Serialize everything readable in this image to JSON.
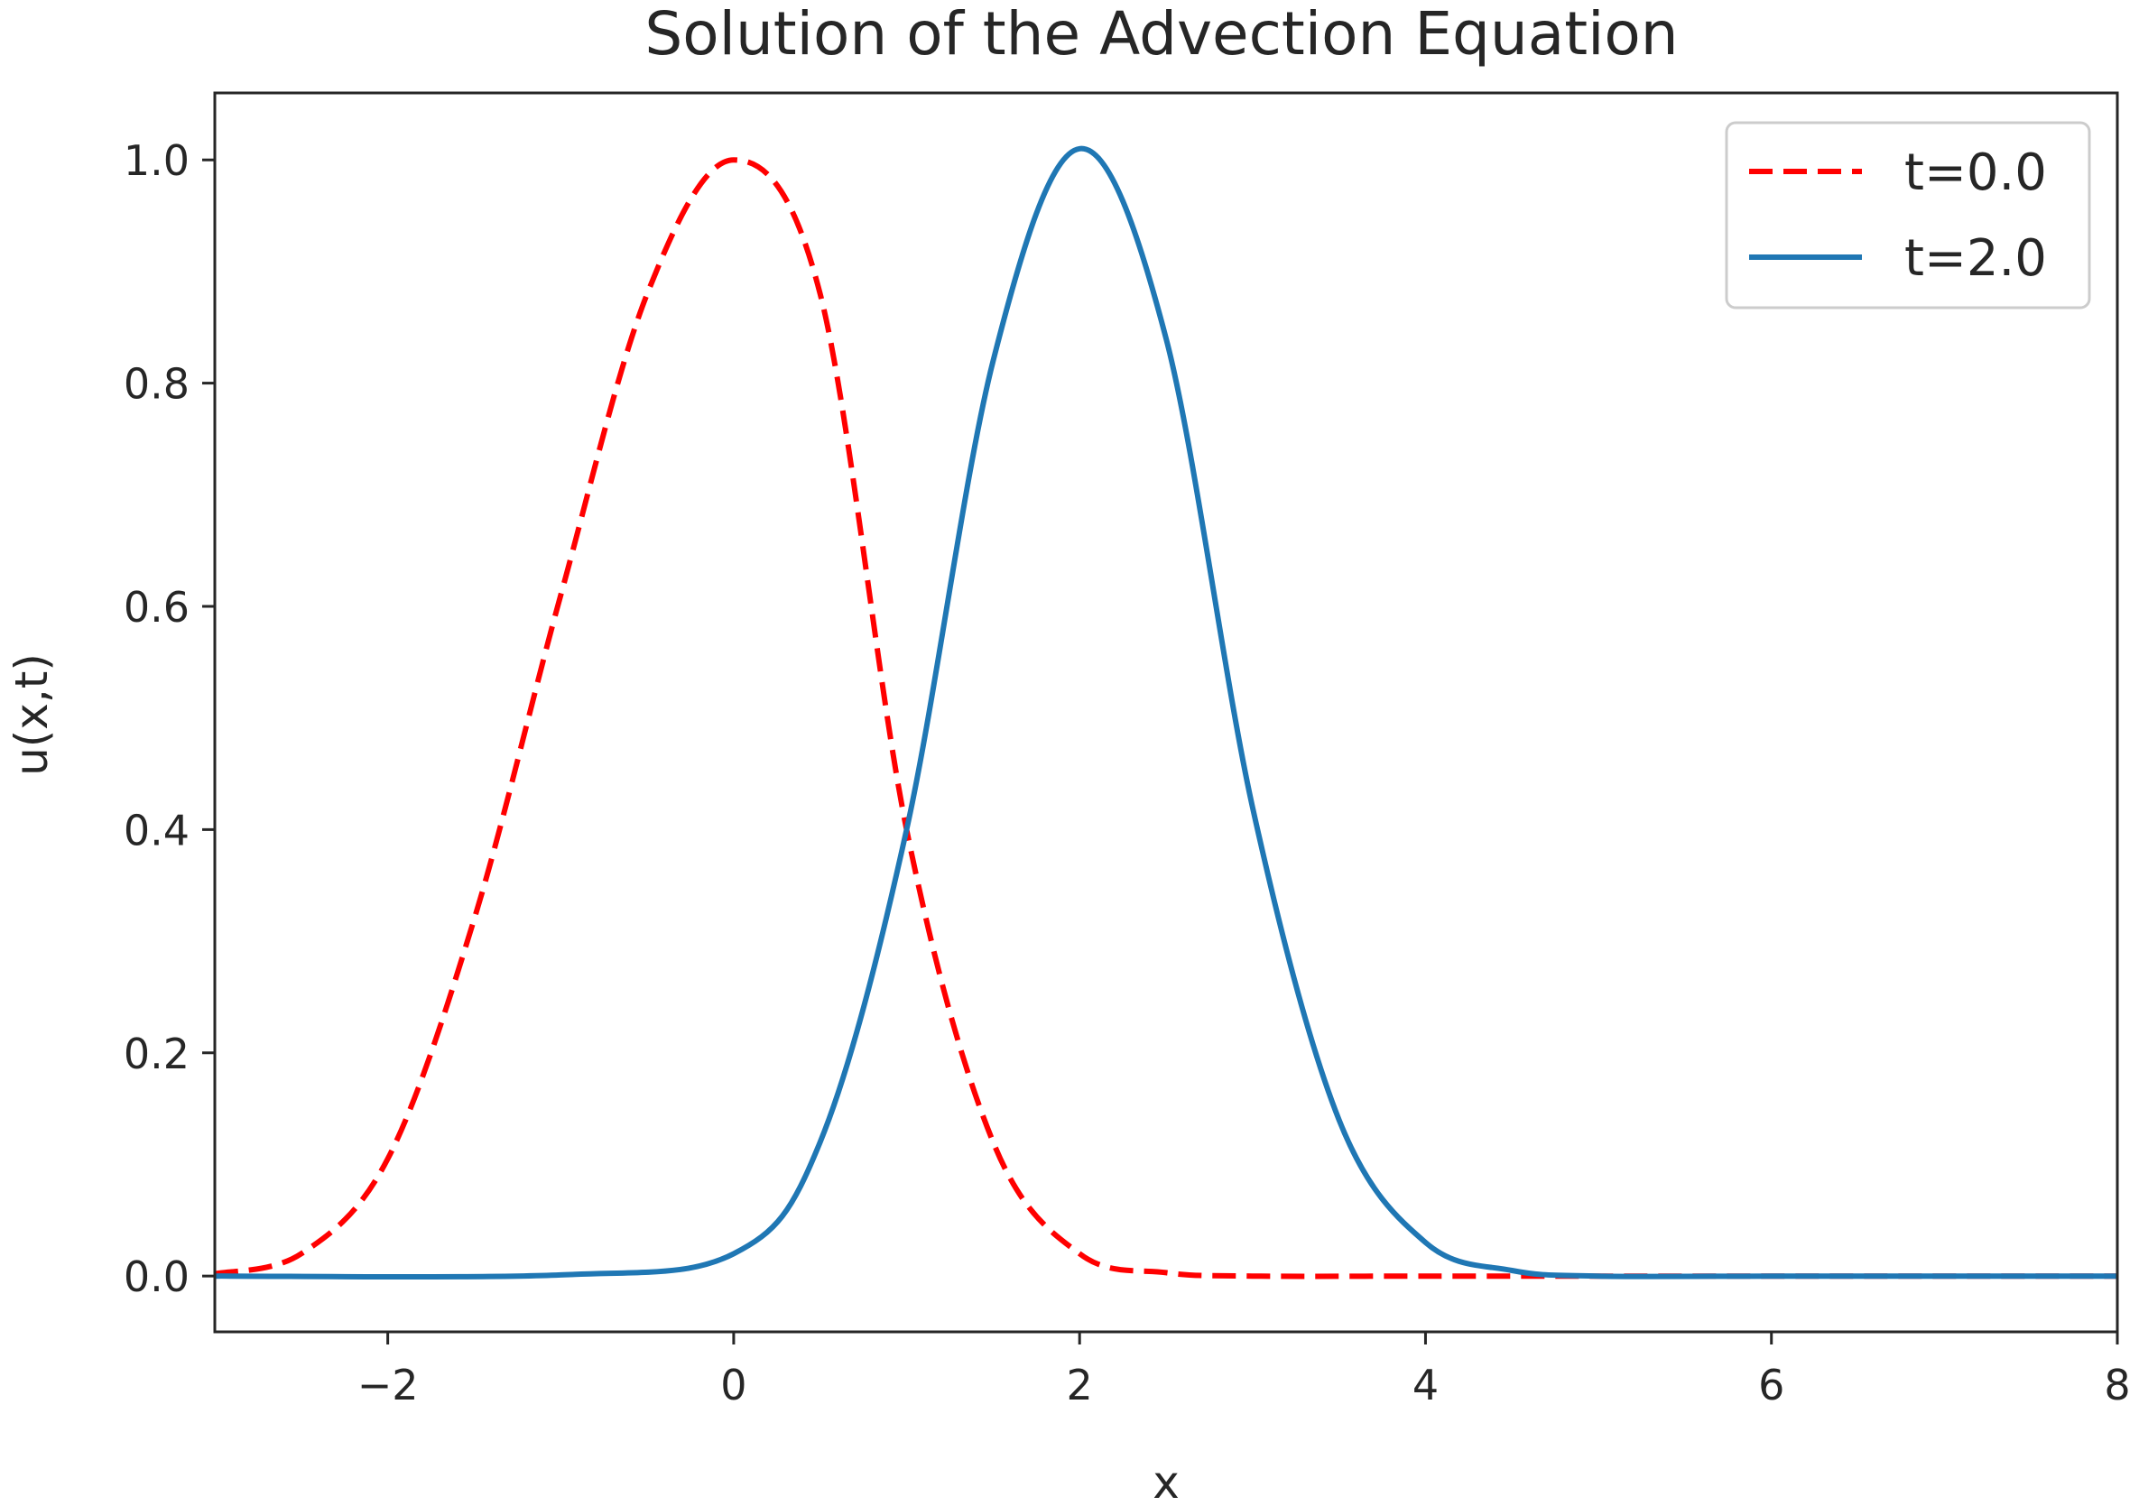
{
  "chart_data": {
    "type": "line",
    "title": "Solution of the Advection Equation",
    "xlabel": "x",
    "ylabel": "u(x,t)",
    "xlim": [
      -3,
      8
    ],
    "ylim": [
      -0.05,
      1.06
    ],
    "xticks": [
      -2,
      0,
      2,
      4,
      6,
      8
    ],
    "xtick_labels": [
      "−2",
      "0",
      "2",
      "4",
      "6",
      "8"
    ],
    "yticks": [
      0.0,
      0.2,
      0.4,
      0.6,
      0.8,
      1.0
    ],
    "ytick_labels": [
      "0.0",
      "0.2",
      "0.4",
      "0.6",
      "0.8",
      "1.0"
    ],
    "grid": false,
    "legend_position": "top-right",
    "series": [
      {
        "name": "t=0.0",
        "color": "#ff0000",
        "style": "dashed",
        "x": [
          -3.0,
          -2.5,
          -2.0,
          -1.5,
          -1.0,
          -0.5,
          0.0,
          0.5,
          1.0,
          1.5,
          2.0,
          2.5,
          3.0,
          4.0,
          5.0,
          6.0,
          7.0,
          8.0
        ],
        "y": [
          0.002,
          0.02,
          0.105,
          0.32,
          0.61,
          0.88,
          1.0,
          0.88,
          0.4,
          0.12,
          0.02,
          0.003,
          0.0,
          0.0,
          0.0,
          0.0,
          0.0,
          0.0
        ]
      },
      {
        "name": "t=2.0",
        "color": "#1f77b4",
        "style": "solid",
        "x": [
          -3.0,
          -1.0,
          0.0,
          0.5,
          1.0,
          1.5,
          2.0,
          2.5,
          3.0,
          3.5,
          4.0,
          4.5,
          5.0,
          6.0,
          7.0,
          8.0
        ],
        "y": [
          0.0,
          0.001,
          0.02,
          0.12,
          0.4,
          0.82,
          1.01,
          0.84,
          0.42,
          0.14,
          0.03,
          0.005,
          0.0,
          0.0,
          0.0,
          0.0
        ]
      }
    ]
  }
}
